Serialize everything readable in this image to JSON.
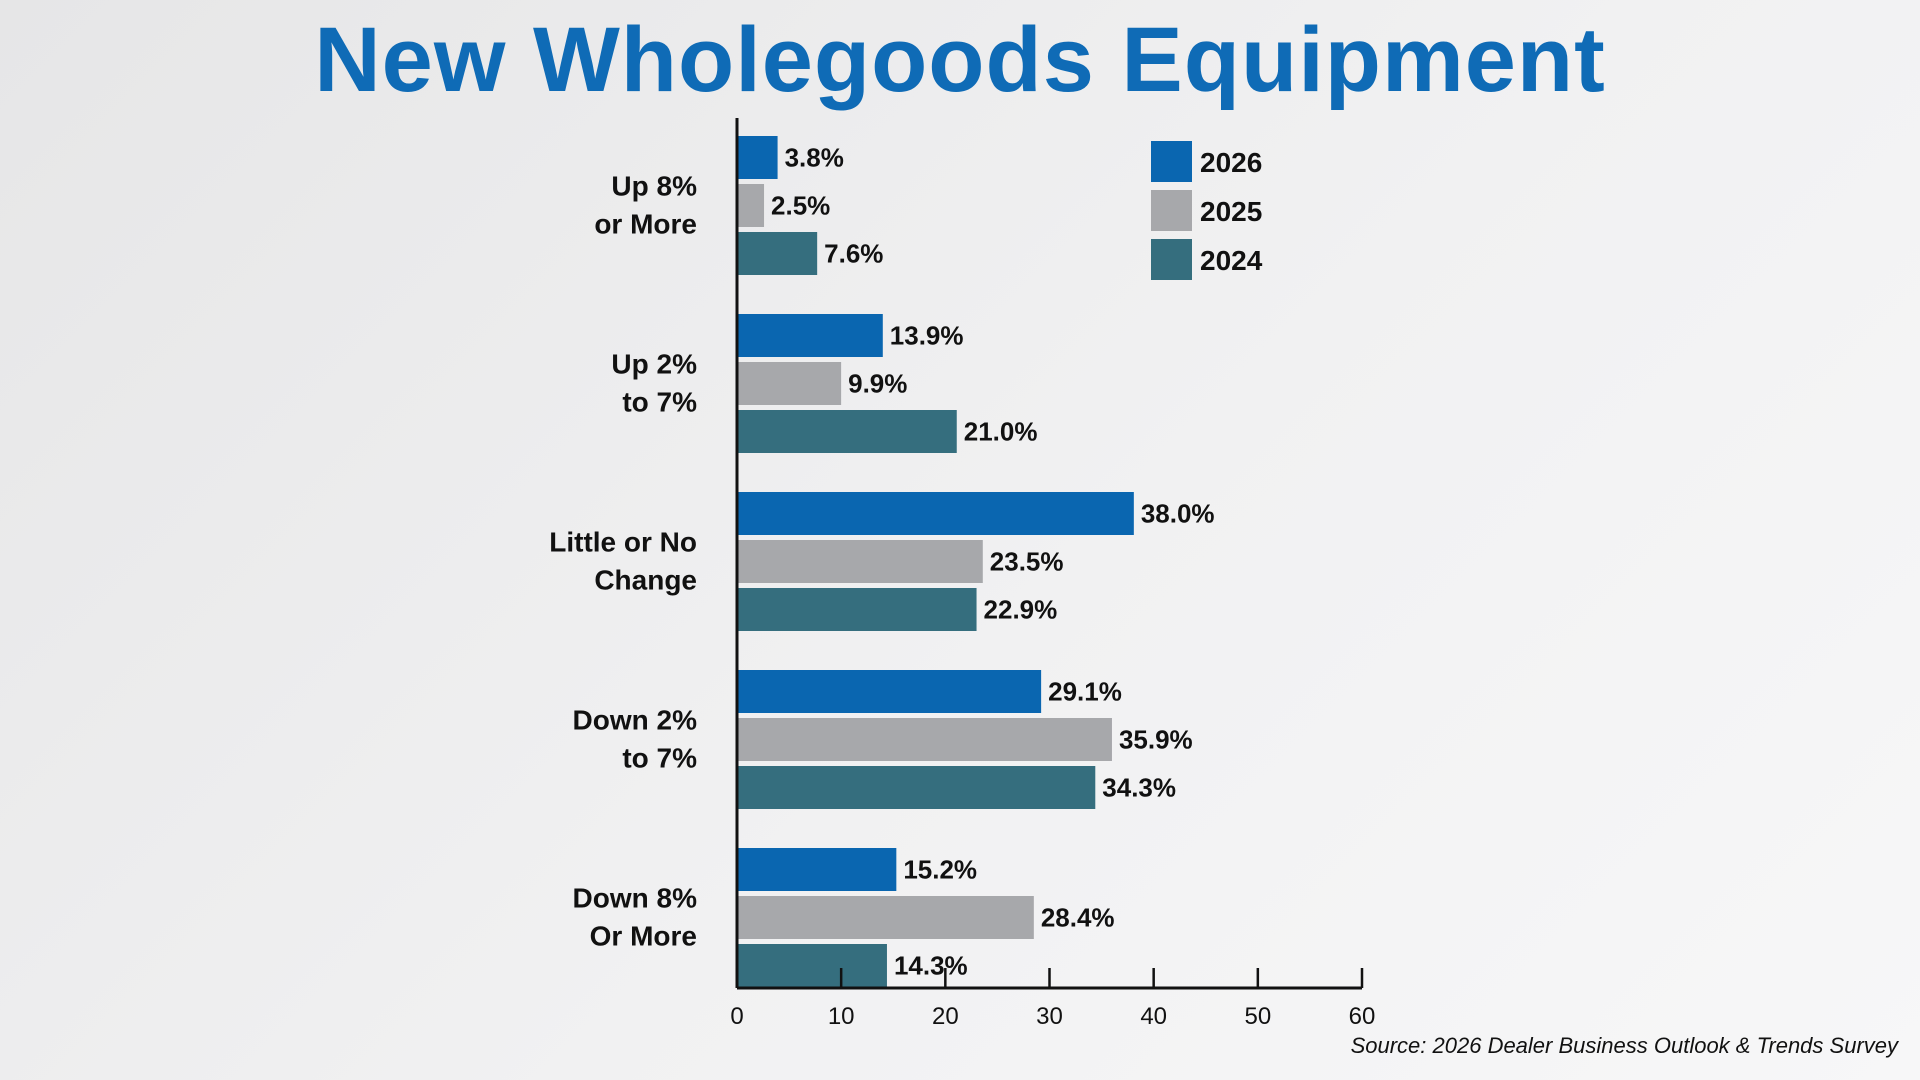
{
  "chart_data": {
    "type": "bar",
    "orientation": "horizontal",
    "title": "New Wholegoods Equipment",
    "categories": [
      [
        "Up 8%",
        "or More"
      ],
      [
        "Up 2%",
        "to 7%"
      ],
      [
        "Little or No",
        "Change"
      ],
      [
        "Down 2%",
        "to 7%"
      ],
      [
        "Down 8%",
        "Or More"
      ]
    ],
    "series": [
      {
        "name": "2026",
        "color": "#0a66b0",
        "values": [
          3.8,
          13.9,
          38.0,
          29.1,
          15.2
        ],
        "labels": [
          "3.8%",
          "13.9%",
          "38.0%",
          "29.1%",
          "15.2%"
        ]
      },
      {
        "name": "2025",
        "color": "#a7a8ab",
        "values": [
          2.5,
          9.9,
          23.5,
          35.9,
          28.4
        ],
        "labels": [
          "2.5%",
          "9.9%",
          "23.5%",
          "35.9%",
          "28.4%"
        ]
      },
      {
        "name": "2024",
        "color": "#356e7e",
        "values": [
          7.6,
          21.0,
          22.9,
          34.3,
          14.3
        ],
        "labels": [
          "7.6%",
          "21.0%",
          "22.9%",
          "34.3%",
          "14.3%"
        ]
      }
    ],
    "xlim": [
      0,
      60
    ],
    "xticks": [
      0,
      10,
      20,
      30,
      40,
      50,
      60
    ],
    "xlabel": "",
    "ylabel": "",
    "grid": false,
    "legend_position": "top-right"
  },
  "source": "Source: 2026 Dealer Business Outlook & Trends Survey"
}
